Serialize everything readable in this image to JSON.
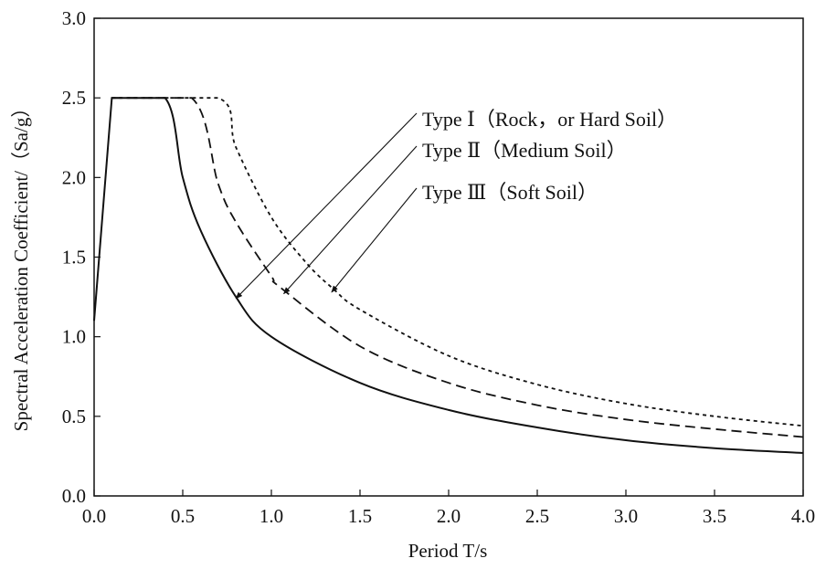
{
  "chart_data": {
    "type": "line",
    "xlabel": "Period T/s",
    "ylabel": "Spectral Acceleration Coefficient/（Sa/g）",
    "xlim": [
      0,
      4.0
    ],
    "ylim": [
      0,
      3.0
    ],
    "x_ticks": [
      "0.0",
      "0.5",
      "1.0",
      "1.5",
      "2.0",
      "2.5",
      "3.0",
      "3.5",
      "4.0"
    ],
    "y_ticks": [
      "0.0",
      "0.5",
      "1.0",
      "1.5",
      "2.0",
      "2.5",
      "3.0"
    ],
    "grid": false,
    "series": [
      {
        "name": "Type Ⅰ（Rock，or Hard Soil）",
        "style": "solid",
        "x": [
          0.0,
          0.1,
          0.4,
          0.5,
          0.6,
          0.8,
          1.0,
          1.5,
          2.0,
          2.5,
          3.0,
          3.5,
          4.0
        ],
        "values": [
          1.1,
          2.5,
          2.5,
          2.0,
          1.67,
          1.25,
          1.0,
          0.71,
          0.54,
          0.43,
          0.35,
          0.3,
          0.27
        ]
      },
      {
        "name": "Type Ⅱ（Medium Soil）",
        "style": "dashed",
        "x": [
          0.1,
          0.55,
          0.7,
          0.8,
          1.0,
          1.05,
          1.5,
          2.0,
          2.5,
          3.0,
          3.5,
          4.0
        ],
        "values": [
          2.5,
          2.5,
          1.96,
          1.72,
          1.38,
          1.31,
          0.94,
          0.71,
          0.57,
          0.48,
          0.42,
          0.37
        ]
      },
      {
        "name": "Type Ⅲ（Soft Soil）",
        "style": "dotted",
        "x": [
          0.1,
          0.7,
          0.8,
          1.0,
          1.2,
          1.35,
          1.5,
          2.0,
          2.5,
          3.0,
          3.5,
          4.0
        ],
        "values": [
          2.5,
          2.5,
          2.19,
          1.75,
          1.46,
          1.3,
          1.17,
          0.88,
          0.7,
          0.58,
          0.5,
          0.44
        ]
      }
    ],
    "annotations": [
      {
        "text": "Type Ⅰ（Rock，or Hard Soil）",
        "points_to": [
          0.8,
          1.24
        ]
      },
      {
        "text": "Type Ⅱ（Medium Soil）",
        "points_to": [
          1.07,
          1.27
        ]
      },
      {
        "text": "Type Ⅲ（Soft Soil）",
        "points_to": [
          1.34,
          1.28
        ]
      }
    ]
  }
}
